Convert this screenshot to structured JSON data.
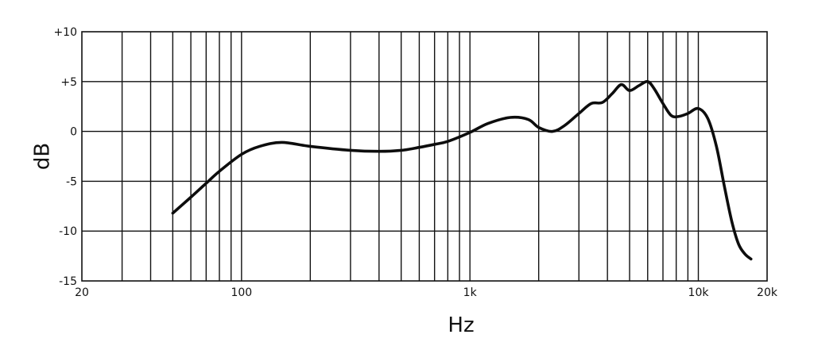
{
  "chart_data": {
    "type": "line",
    "title": "",
    "xlabel": "Hz",
    "ylabel": "dB",
    "xscale": "log",
    "xlim": [
      20,
      20000
    ],
    "ylim": [
      -15,
      10
    ],
    "grid": true,
    "legend": "none",
    "line_color": "#0d0d0d",
    "x_tick_labels": [
      {
        "value": 20,
        "label": "20"
      },
      {
        "value": 100,
        "label": "100"
      },
      {
        "value": 1000,
        "label": "1k"
      },
      {
        "value": 10000,
        "label": "10k"
      },
      {
        "value": 20000,
        "label": "20k"
      }
    ],
    "y_tick_labels": [
      {
        "value": 10,
        "label": "+10"
      },
      {
        "value": 5,
        "label": "+5"
      },
      {
        "value": 0,
        "label": "0"
      },
      {
        "value": -5,
        "label": "-5"
      },
      {
        "value": -10,
        "label": "-10"
      },
      {
        "value": -15,
        "label": "-15"
      }
    ],
    "x_gridlines": [
      30,
      40,
      50,
      60,
      70,
      80,
      90,
      100,
      200,
      300,
      400,
      500,
      600,
      700,
      800,
      900,
      1000,
      2000,
      3000,
      4000,
      5000,
      6000,
      7000,
      8000,
      9000,
      10000
    ],
    "y_gridlines": [
      -10,
      -5,
      0,
      5
    ],
    "series": [
      {
        "x": [
          50,
          60,
          70,
          80,
          100,
          120,
          150,
          200,
          300,
          400,
          500,
          600,
          700,
          800,
          1000,
          1200,
          1500,
          1800,
          2000,
          2300,
          2600,
          3000,
          3400,
          3800,
          4200,
          4600,
          5000,
          5500,
          6000,
          6400,
          7000,
          7600,
          8200,
          9000,
          10000,
          11000,
          12000,
          13000,
          14000,
          15000,
          16000,
          17000
        ],
        "y": [
          -8.2,
          -6.6,
          -5.2,
          -4.0,
          -2.3,
          -1.5,
          -1.1,
          -1.5,
          -1.9,
          -2.0,
          -1.9,
          -1.6,
          -1.3,
          -1.0,
          -0.1,
          0.8,
          1.4,
          1.2,
          0.4,
          0.0,
          0.6,
          1.8,
          2.8,
          2.9,
          3.8,
          4.7,
          4.1,
          4.6,
          5.0,
          4.3,
          2.8,
          1.6,
          1.5,
          1.8,
          2.3,
          1.3,
          -1.5,
          -5.5,
          -9.0,
          -11.3,
          -12.3,
          -12.8
        ]
      }
    ]
  }
}
